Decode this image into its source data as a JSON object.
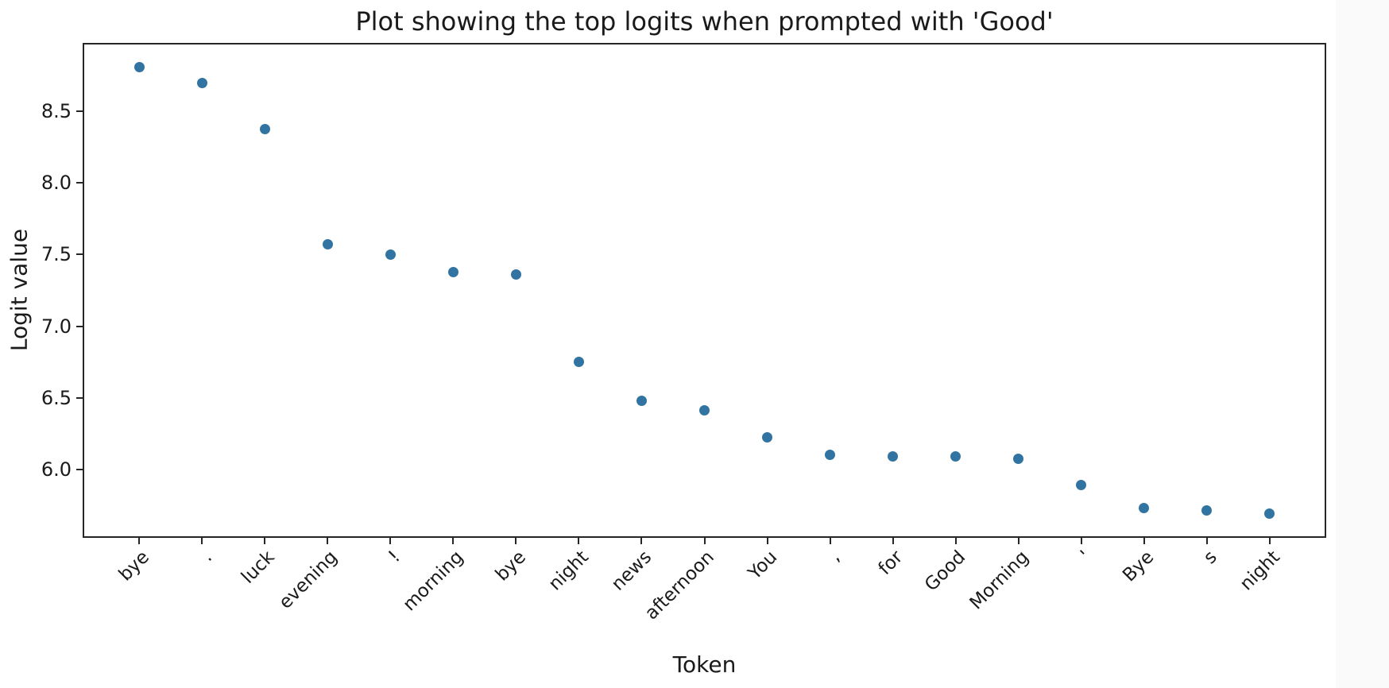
{
  "figure": {
    "background": "#ffffff",
    "right_strip_color": "#fafafa",
    "frame_color": "#262626",
    "text_color": "#1a1a1a"
  },
  "chart_data": {
    "type": "scatter",
    "title": "Plot showing the top logits when prompted with 'Good'",
    "xlabel": "Token",
    "ylabel": "Logit value",
    "categories": [
      "bye",
      ".",
      "luck",
      "evening",
      "!",
      "morning",
      "bye",
      "night",
      "news",
      "afternoon",
      "You",
      ",",
      "for",
      "Good",
      "Morning",
      "'",
      "Bye",
      "s",
      "night"
    ],
    "values": [
      8.81,
      8.7,
      8.38,
      7.57,
      7.5,
      7.38,
      7.36,
      6.75,
      6.48,
      6.41,
      6.22,
      6.1,
      6.09,
      6.09,
      6.07,
      5.89,
      5.73,
      5.71,
      5.69
    ],
    "ytick_labels": [
      "8.5",
      "8.0",
      "7.5",
      "7.0",
      "6.5",
      "6.0"
    ],
    "ylim": [
      5.52,
      8.98
    ],
    "grid": false,
    "legend": null,
    "marker_color": "#3274a1",
    "marker_shape": "circle"
  }
}
